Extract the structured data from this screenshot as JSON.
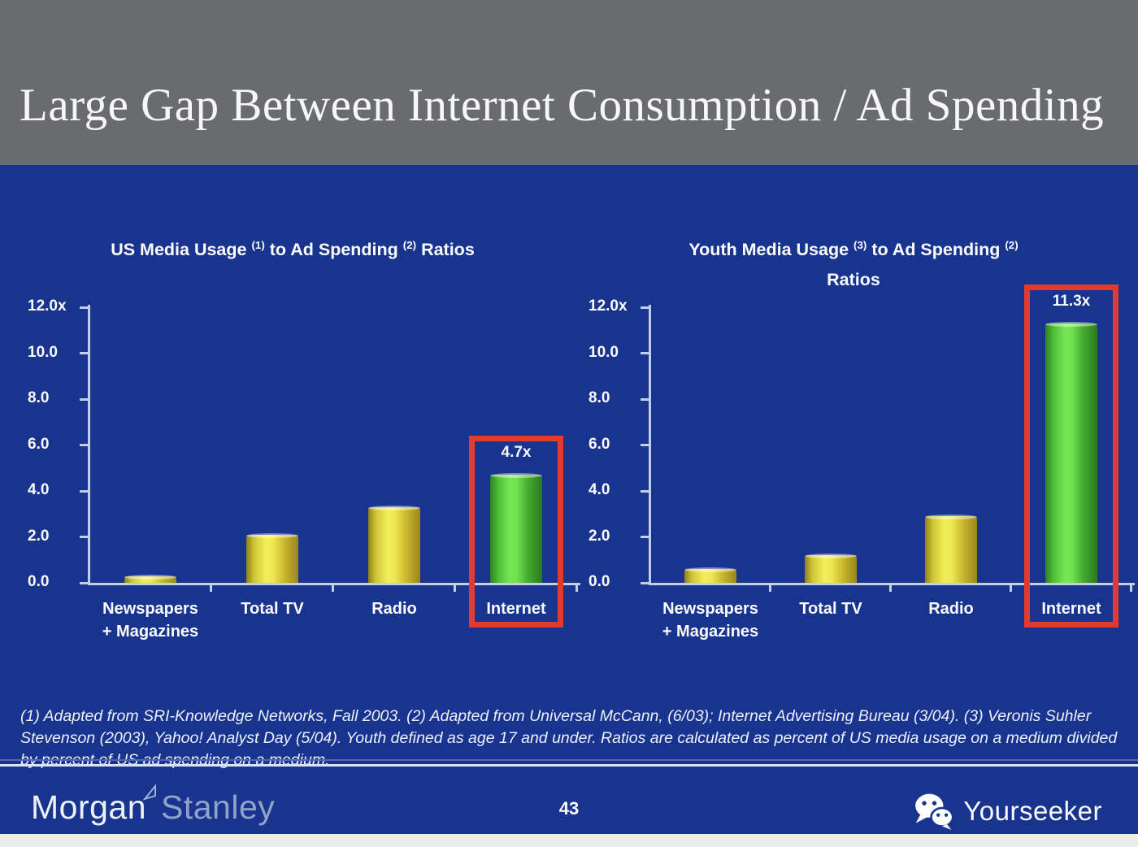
{
  "slide": {
    "title": "Large Gap Between Internet Consumption / Ad Spending",
    "page_number": "43",
    "footnote": "(1) Adapted from SRI-Knowledge Networks, Fall 2003.  (2) Adapted from Universal McCann, (6/03); Internet Advertising Bureau (3/04). (3) Veronis Suhler Stevenson (2003), Yahoo! Analyst Day (5/04).  Youth defined as age 17 and under.  Ratios are calculated as percent of US media usage on a medium divided by percent of US ad spending on a medium.",
    "brand": {
      "part1": "Morgan",
      "part2": "Stanley",
      "flag_icon": "pennant-icon"
    },
    "watermark": {
      "label": "Yourseeker",
      "icon": "wechat-icon"
    }
  },
  "colors": {
    "header_bg": "#696B6E",
    "slide_bg": "#18348F",
    "axis": "#C3CEE8",
    "text": "#FFFFFF",
    "highlight_box": "#E23B2E",
    "bar_yellow": "#EFED58",
    "bar_green": "#74E455",
    "footer_rule": "#DCE4F4",
    "bottom_strip": "#ECECEC"
  },
  "chart_data": [
    {
      "type": "bar",
      "title_lines": [
        [
          {
            "t": "US Media Usage"
          },
          {
            "sup": "(1)"
          },
          {
            "t": "to Ad Spending"
          },
          {
            "sup": "(2)"
          },
          {
            "t": "Ratios"
          }
        ]
      ],
      "categories": [
        [
          "Newspapers",
          "+ Magazines"
        ],
        [
          "Total TV"
        ],
        [
          "Radio"
        ],
        [
          "Internet"
        ]
      ],
      "values": [
        0.3,
        2.1,
        3.3,
        4.7
      ],
      "ylim": [
        0,
        12
      ],
      "grid": false,
      "legend": null,
      "yticks": [
        {
          "label": "12.0x",
          "value": 12
        },
        {
          "label": "10.0",
          "value": 10
        },
        {
          "label": "8.0",
          "value": 8
        },
        {
          "label": "6.0",
          "value": 6
        },
        {
          "label": "4.0",
          "value": 4
        },
        {
          "label": "2.0",
          "value": 2
        },
        {
          "label": "0.0",
          "value": 0
        }
      ],
      "highlight": {
        "index": 3,
        "label": "4.7x"
      }
    },
    {
      "type": "bar",
      "title_lines": [
        [
          {
            "t": "Youth Media Usage"
          },
          {
            "sup": "(3)"
          },
          {
            "t": "to Ad Spending"
          },
          {
            "sup": "(2)"
          }
        ],
        [
          {
            "t": "Ratios"
          }
        ]
      ],
      "categories": [
        [
          "Newspapers",
          "+ Magazines"
        ],
        [
          "Total TV"
        ],
        [
          "Radio"
        ],
        [
          "Internet"
        ]
      ],
      "values": [
        0.6,
        1.2,
        2.9,
        11.3
      ],
      "ylim": [
        0,
        12
      ],
      "grid": false,
      "legend": null,
      "yticks": [
        {
          "label": "12.0x",
          "value": 12
        },
        {
          "label": "10.0",
          "value": 10
        },
        {
          "label": "8.0",
          "value": 8
        },
        {
          "label": "6.0",
          "value": 6
        },
        {
          "label": "4.0",
          "value": 4
        },
        {
          "label": "2.0",
          "value": 2
        },
        {
          "label": "0.0",
          "value": 0
        }
      ],
      "highlight": {
        "index": 3,
        "label": "11.3x"
      }
    }
  ]
}
